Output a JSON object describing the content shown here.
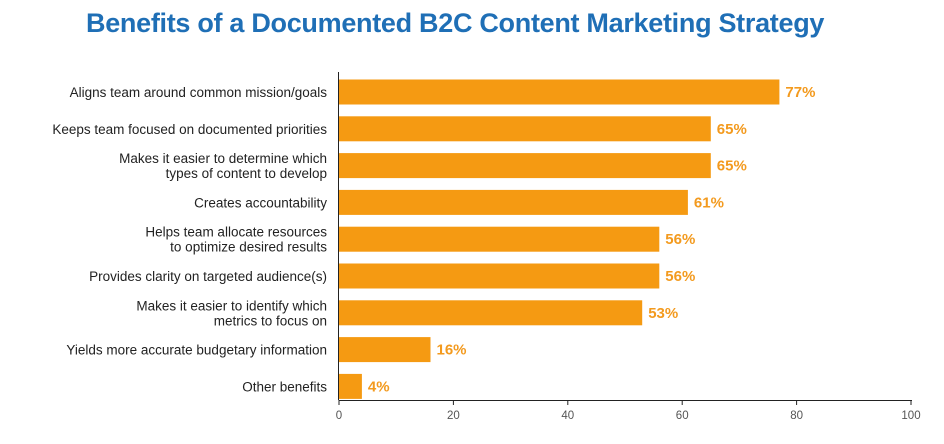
{
  "title": "Benefits of a Documented B2C Content Marketing Strategy",
  "colors": {
    "bar": "#f59a12",
    "value_label": "#f39a1e",
    "title": "#1f6fb6",
    "axis": "#222222"
  },
  "chart_data": {
    "type": "bar",
    "orientation": "horizontal",
    "title": "Benefits of a Documented B2C Content Marketing Strategy",
    "xlabel": "",
    "ylabel": "",
    "xlim": [
      0,
      100
    ],
    "x_ticks": [
      0,
      20,
      40,
      60,
      80,
      100
    ],
    "grid": false,
    "legend": "none",
    "value_suffix": "%",
    "categories": [
      [
        "Aligns team around common mission/goals"
      ],
      [
        "Keeps team focused on documented priorities"
      ],
      [
        "Makes it easier to determine which",
        "types of content to develop"
      ],
      [
        "Creates accountability"
      ],
      [
        "Helps team allocate resources",
        "to optimize desired results"
      ],
      [
        "Provides clarity on targeted audience(s)"
      ],
      [
        "Makes it easier to identify which",
        "metrics to focus on"
      ],
      [
        "Yields more accurate budgetary information"
      ],
      [
        "Other benefits"
      ]
    ],
    "values": [
      77,
      65,
      65,
      61,
      56,
      56,
      53,
      16,
      4
    ],
    "value_labels": [
      "77%",
      "65%",
      "65%",
      "61%",
      "56%",
      "56%",
      "53%",
      "16%",
      "4%"
    ]
  }
}
